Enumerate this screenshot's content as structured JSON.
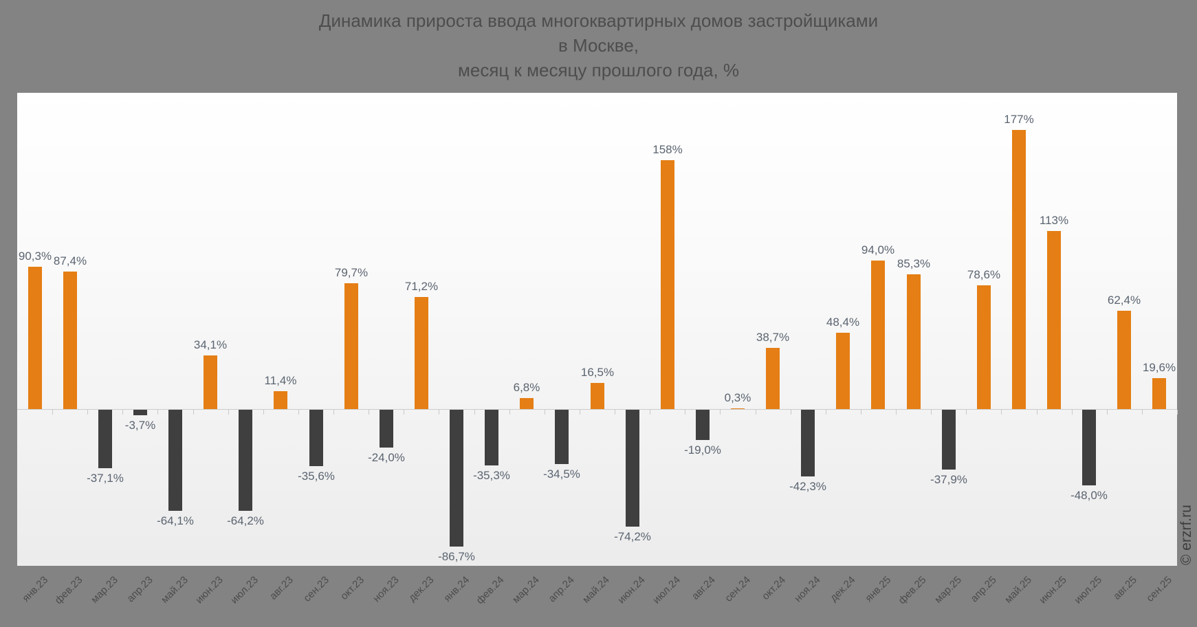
{
  "title": {
    "line1": "Динамика прироста ввода многоквартирных домов застройщиками",
    "line2": "в Москве,",
    "line3": "месяц к месяцу прошлого года, %"
  },
  "watermark": "© erzrf.ru",
  "colors": {
    "positive_bar": "#e57e14",
    "negative_bar": "#3f3f3f",
    "value_label": "#5b6470",
    "page_background": "#838383",
    "title_text": "#4d4d4d",
    "axis_line": "#cccccc"
  },
  "chart_data": {
    "type": "bar",
    "title": "Динамика прироста ввода многоквартирных домов застройщиками в Москве, месяц к месяцу прошлого года, %",
    "ylabel": "%",
    "xlabel": "",
    "ylim": [
      -96,
      200
    ],
    "grid": false,
    "legend": false,
    "categories": [
      "янв.23",
      "фев.23",
      "мар.23",
      "апр.23",
      "май.23",
      "июн.23",
      "июл.23",
      "авг.23",
      "сен.23",
      "окт.23",
      "ноя.23",
      "дек.23",
      "янв.24",
      "фев.24",
      "мар.24",
      "апр.24",
      "май.24",
      "июн.24",
      "июл.24",
      "авг.24",
      "сен.24",
      "окт.24",
      "ноя.24",
      "дек.24",
      "янв.25",
      "фев.25",
      "мар.25",
      "апр.25",
      "май.25",
      "июн.25",
      "июл.25",
      "авг.25",
      "сен.25"
    ],
    "values": [
      90.3,
      87.4,
      -37.1,
      -3.7,
      -64.1,
      34.1,
      -64.2,
      11.4,
      -35.6,
      79.7,
      -24.0,
      71.2,
      -86.7,
      -35.3,
      6.8,
      -34.5,
      16.5,
      -74.2,
      158,
      -19.0,
      0.3,
      38.7,
      -42.3,
      48.4,
      94.0,
      85.3,
      -37.9,
      78.6,
      177,
      113,
      -48.0,
      62.4,
      19.6
    ],
    "value_labels": [
      "90,3%",
      "87,4%",
      "-37,1%",
      "-3,7%",
      "-64,1%",
      "34,1%",
      "-64,2%",
      "11,4%",
      "-35,6%",
      "79,7%",
      "-24,0%",
      "71,2%",
      "-86,7%",
      "-35,3%",
      "6,8%",
      "-34,5%",
      "16,5%",
      "-74,2%",
      "158%",
      "-19,0%",
      "0,3%",
      "38,7%",
      "-42,3%",
      "48,4%",
      "94,0%",
      "85,3%",
      "-37,9%",
      "78,6%",
      "177%",
      "113%",
      "-48,0%",
      "62,4%",
      "19,6%"
    ]
  }
}
